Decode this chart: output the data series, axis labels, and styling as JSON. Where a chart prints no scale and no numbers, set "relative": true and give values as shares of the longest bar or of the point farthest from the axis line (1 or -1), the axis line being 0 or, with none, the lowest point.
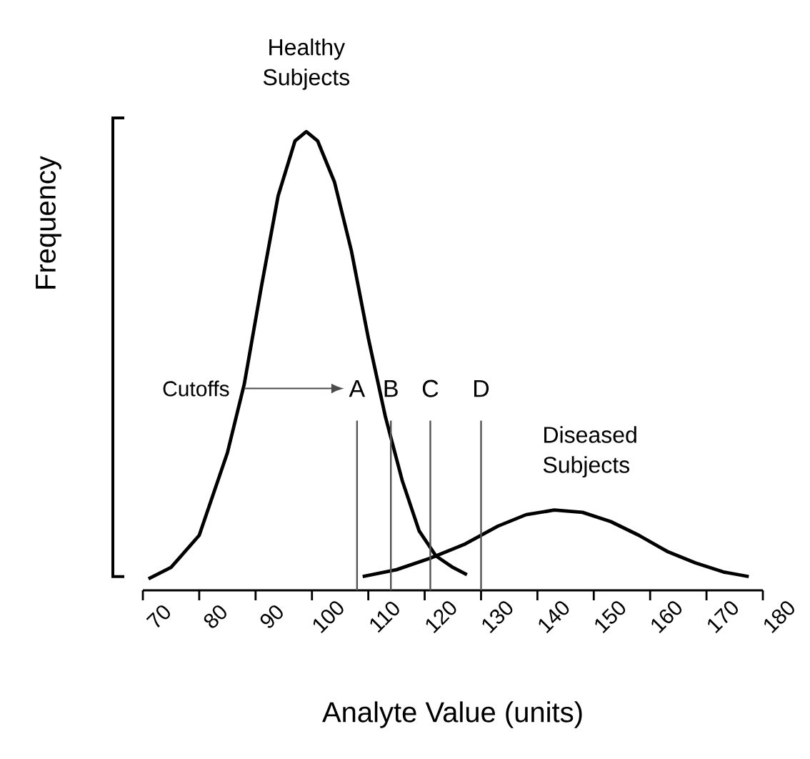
{
  "chart_data": {
    "type": "line",
    "relative": true,
    "xlabel": "Analyte Value (units)",
    "ylabel": "Frequency",
    "xlim": [
      70,
      180
    ],
    "xticks": [
      70,
      80,
      90,
      100,
      110,
      120,
      130,
      140,
      150,
      160,
      170,
      180
    ],
    "series": [
      {
        "name": "Healthy Subjects",
        "color": "#000000",
        "x": [
          71,
          75,
          80,
          85,
          88,
          91,
          94,
          97,
          99,
          101,
          104,
          107,
          110,
          113,
          116,
          119,
          122,
          125,
          127.5
        ],
        "values": [
          0.025,
          0.05,
          0.12,
          0.3,
          0.45,
          0.66,
          0.86,
          0.98,
          1,
          0.98,
          0.89,
          0.74,
          0.55,
          0.38,
          0.24,
          0.13,
          0.075,
          0.05,
          0.034
        ]
      },
      {
        "name": "Diseased Subjects",
        "color": "#000000",
        "x": [
          109,
          115,
          121,
          127,
          133,
          138,
          143,
          148,
          153,
          158,
          163,
          168,
          173,
          177.5
        ],
        "values": [
          0.03,
          0.045,
          0.07,
          0.1,
          0.14,
          0.165,
          0.175,
          0.17,
          0.15,
          0.12,
          0.085,
          0.06,
          0.04,
          0.03
        ]
      }
    ],
    "ref_lines": [
      {
        "axis": "x",
        "value": 108,
        "label": "A",
        "color": "#555555"
      },
      {
        "axis": "x",
        "value": 114,
        "label": "B",
        "color": "#555555"
      },
      {
        "axis": "x",
        "value": 121,
        "label": "C",
        "color": "#555555"
      },
      {
        "axis": "x",
        "value": 130,
        "label": "D",
        "color": "#555555"
      }
    ],
    "annotations": [
      "Cutoffs"
    ]
  }
}
